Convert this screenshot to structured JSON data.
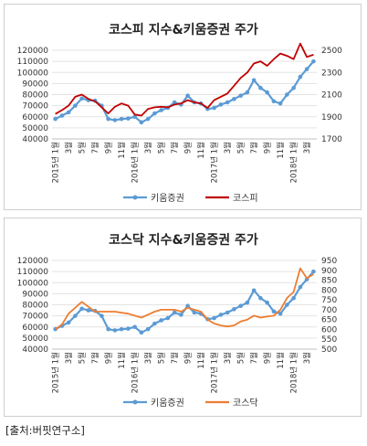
{
  "source_note": "[출처:버핏연구소]",
  "colors": {
    "kiwoom": "#5B9BD5",
    "kospi": "#C00000",
    "kosdaq": "#ED7D31"
  },
  "chart_data": [
    {
      "type": "line",
      "title": "코스피 지수&키움증권 주가",
      "x_labels": [
        "2015년 1월",
        "3월",
        "5월",
        "7월",
        "9월",
        "11월",
        "2016년 1월",
        "3월",
        "5월",
        "7월",
        "9월",
        "11월",
        "2017년 1월",
        "3월",
        "5월",
        "7월",
        "9월",
        "11월",
        "2018년 1월",
        "3월"
      ],
      "left_axis": {
        "min": 40000,
        "max": 120000,
        "step": 10000,
        "ticks": [
          "120000",
          "110000",
          "100000",
          "90000",
          "80000",
          "70000",
          "60000",
          "50000",
          "40000"
        ]
      },
      "right_axis": {
        "min": 1700,
        "max": 2500,
        "step": 200,
        "ticks": [
          "2500",
          "2300",
          "2100",
          "1900",
          "1700"
        ]
      },
      "series": [
        {
          "name": "키움증권",
          "axis": "left",
          "color_key": "kiwoom",
          "markers": true,
          "values": [
            58000,
            61000,
            64000,
            70000,
            76500,
            75000,
            74500,
            70000,
            58000,
            57000,
            58000,
            58500,
            60000,
            55000,
            58000,
            63000,
            66000,
            68000,
            73000,
            71000,
            79000,
            73000,
            72000,
            67000,
            68000,
            71000,
            73000,
            76000,
            79000,
            82000,
            93000,
            86000,
            82000,
            74000,
            72000,
            80000,
            86000,
            96000,
            103000,
            110000
          ]
        },
        {
          "name": "코스피",
          "axis": "right",
          "color_key": "kospi",
          "markers": false,
          "values": [
            1925,
            1960,
            2000,
            2080,
            2100,
            2060,
            2040,
            1985,
            1930,
            1990,
            2020,
            2000,
            1920,
            1910,
            1970,
            1985,
            1990,
            1985,
            2010,
            2020,
            2050,
            2030,
            2020,
            1980,
            2050,
            2080,
            2110,
            2180,
            2250,
            2300,
            2380,
            2400,
            2360,
            2420,
            2470,
            2450,
            2420,
            2560,
            2440,
            2460
          ]
        }
      ]
    },
    {
      "type": "line",
      "title": "코스닥 지수&키움증권 주가",
      "x_labels": [
        "2015년 1월",
        "3월",
        "5월",
        "7월",
        "9월",
        "11월",
        "2016년 1월",
        "3월",
        "5월",
        "7월",
        "9월",
        "11월",
        "2017년 1월",
        "3월",
        "5월",
        "7월",
        "9월",
        "11월",
        "2018년 1월",
        "3월"
      ],
      "left_axis": {
        "min": 40000,
        "max": 120000,
        "step": 10000,
        "ticks": [
          "120000",
          "110000",
          "100000",
          "90000",
          "80000",
          "70000",
          "60000",
          "50000",
          "40000"
        ]
      },
      "right_axis": {
        "min": 500,
        "max": 950,
        "step": 50,
        "ticks": [
          "950",
          "900",
          "850",
          "800",
          "750",
          "700",
          "650",
          "600",
          "550",
          "500"
        ]
      },
      "series": [
        {
          "name": "키움증권",
          "axis": "left",
          "color_key": "kiwoom",
          "markers": true,
          "values": [
            58000,
            61000,
            64000,
            70000,
            76500,
            75000,
            74500,
            70000,
            58000,
            57000,
            58000,
            58500,
            60000,
            55000,
            58000,
            63000,
            66000,
            68000,
            73000,
            71000,
            79000,
            73000,
            72000,
            67000,
            68000,
            71000,
            73000,
            76000,
            79000,
            82000,
            93000,
            86000,
            82000,
            74000,
            72000,
            80000,
            86000,
            96000,
            103000,
            110000
          ]
        },
        {
          "name": "코스닥",
          "axis": "right",
          "color_key": "kosdaq",
          "markers": false,
          "values": [
            600,
            625,
            680,
            710,
            740,
            715,
            690,
            690,
            690,
            690,
            685,
            680,
            670,
            660,
            675,
            690,
            700,
            700,
            700,
            690,
            710,
            700,
            690,
            650,
            630,
            620,
            615,
            620,
            640,
            650,
            670,
            660,
            665,
            670,
            700,
            760,
            790,
            910,
            860,
            880
          ]
        }
      ]
    }
  ]
}
